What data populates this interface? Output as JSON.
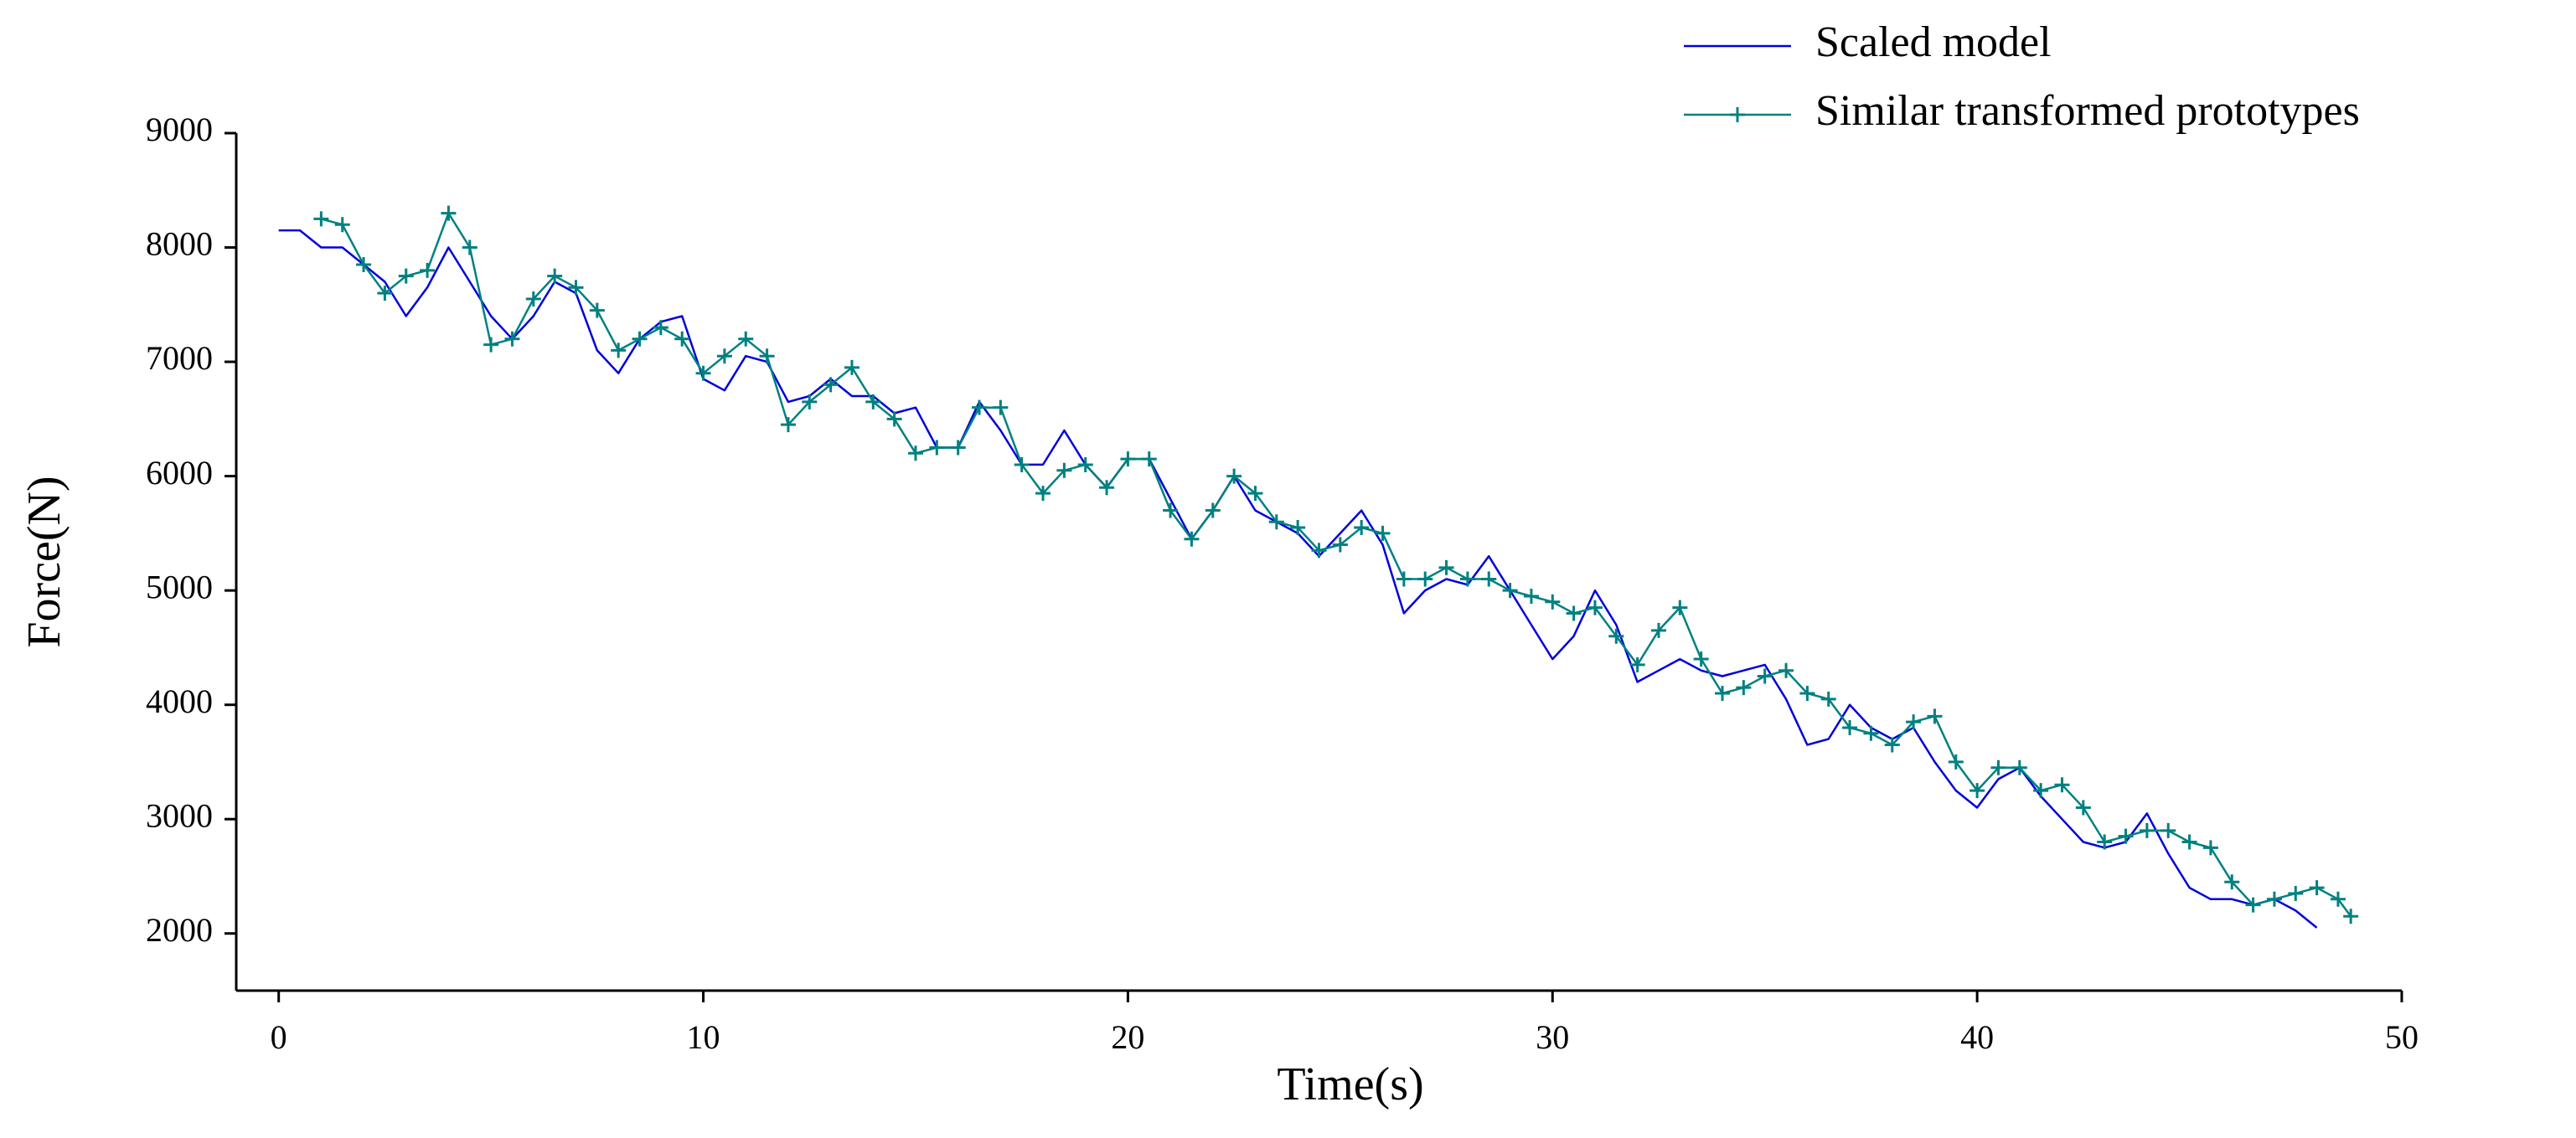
{
  "chart_data": {
    "type": "line",
    "xlabel": "Time(s)",
    "ylabel": "Force(N)",
    "xlim": [
      -1,
      50
    ],
    "ylim": [
      1500,
      9000
    ],
    "xticks": [
      0,
      10,
      20,
      30,
      40,
      50
    ],
    "yticks": [
      2000,
      3000,
      4000,
      5000,
      6000,
      7000,
      8000,
      9000
    ],
    "legend": "upper right",
    "series": [
      {
        "name": "Scaled model",
        "color": "#0000dd",
        "x": [
          0,
          0.5,
          1,
          1.5,
          2,
          2.5,
          3,
          3.5,
          4,
          4.5,
          5,
          5.5,
          6,
          6.5,
          7,
          7.5,
          8,
          8.5,
          9,
          9.5,
          10,
          10.5,
          11,
          11.5,
          12,
          12.5,
          13,
          13.5,
          14,
          14.5,
          15,
          15.5,
          16,
          16.5,
          17,
          17.5,
          18,
          18.5,
          19,
          19.5,
          20,
          20.5,
          21,
          21.5,
          22,
          22.5,
          23,
          23.5,
          24,
          24.5,
          25,
          25.5,
          26,
          26.5,
          27,
          27.5,
          28,
          28.5,
          29,
          29.5,
          30,
          30.5,
          31,
          31.5,
          32,
          32.5,
          33,
          33.5,
          34,
          34.5,
          35,
          35.5,
          36,
          36.5,
          37,
          37.5,
          38,
          38.5,
          39,
          39.5,
          40,
          40.5,
          41,
          41.5,
          42,
          42.5,
          43,
          43.5,
          44,
          44.5,
          45,
          45.5,
          46,
          46.5,
          47,
          47.5,
          48
        ],
        "values": [
          8150,
          8150,
          8000,
          8000,
          7850,
          7700,
          7400,
          7650,
          8000,
          7700,
          7400,
          7200,
          7400,
          7700,
          7600,
          7100,
          6900,
          7200,
          7350,
          7400,
          6850,
          6750,
          7050,
          7000,
          6650,
          6700,
          6850,
          6700,
          6700,
          6550,
          6600,
          6250,
          6250,
          6650,
          6400,
          6100,
          6100,
          6400,
          6100,
          5900,
          6150,
          6150,
          5800,
          5450,
          5700,
          6000,
          5700,
          5600,
          5500,
          5300,
          5500,
          5700,
          5400,
          4800,
          5000,
          5100,
          5050,
          5300,
          5000,
          4700,
          4400,
          4600,
          5000,
          4700,
          4200,
          4300,
          4400,
          4300,
          4250,
          4300,
          4350,
          4050,
          3650,
          3700,
          4000,
          3800,
          3700,
          3800,
          3500,
          3250,
          3100,
          3350,
          3450,
          3200,
          3000,
          2800,
          2750,
          2800,
          3050,
          2700,
          2400,
          2300,
          2300,
          2250,
          2300,
          2200,
          2050
        ]
      },
      {
        "name": "Similar transformed prototypes",
        "color": "#008080",
        "marker": "+",
        "x": [
          1,
          1.5,
          2,
          2.5,
          3,
          3.5,
          4,
          4.5,
          5,
          5.5,
          6,
          6.5,
          7,
          7.5,
          8,
          8.5,
          9,
          9.5,
          10,
          10.5,
          11,
          11.5,
          12,
          12.5,
          13,
          13.5,
          14,
          14.5,
          15,
          15.5,
          16,
          16.5,
          17,
          17.5,
          18,
          18.5,
          19,
          19.5,
          20,
          20.5,
          21,
          21.5,
          22,
          22.5,
          23,
          23.5,
          24,
          24.5,
          25,
          25.5,
          26,
          26.5,
          27,
          27.5,
          28,
          28.5,
          29,
          29.5,
          30,
          30.5,
          31,
          31.5,
          32,
          32.5,
          33,
          33.5,
          34,
          34.5,
          35,
          35.5,
          36,
          36.5,
          37,
          37.5,
          38,
          38.5,
          39,
          39.5,
          40,
          40.5,
          41,
          41.5,
          42,
          42.5,
          43,
          43.5,
          44,
          44.5,
          45,
          45.5,
          46,
          46.5,
          47,
          47.5,
          48,
          48.5,
          48.8
        ],
        "values": [
          8250,
          8200,
          7850,
          7600,
          7750,
          7800,
          8300,
          8000,
          7150,
          7200,
          7550,
          7750,
          7650,
          7450,
          7100,
          7200,
          7300,
          7200,
          6900,
          7050,
          7200,
          7050,
          6450,
          6650,
          6800,
          6950,
          6650,
          6500,
          6200,
          6250,
          6250,
          6600,
          6600,
          6100,
          5850,
          6050,
          6100,
          5900,
          6150,
          6150,
          5700,
          5450,
          5700,
          6000,
          5850,
          5600,
          5550,
          5350,
          5400,
          5550,
          5500,
          5100,
          5100,
          5200,
          5100,
          5100,
          5000,
          4950,
          4900,
          4800,
          4850,
          4600,
          4350,
          4650,
          4850,
          4400,
          4100,
          4150,
          4250,
          4300,
          4100,
          4050,
          3800,
          3750,
          3650,
          3850,
          3900,
          3500,
          3250,
          3450,
          3450,
          3250,
          3300,
          3100,
          2800,
          2850,
          2900,
          2900,
          2800,
          2750,
          2450,
          2250,
          2300,
          2350,
          2400,
          2300,
          2150
        ]
      }
    ]
  }
}
